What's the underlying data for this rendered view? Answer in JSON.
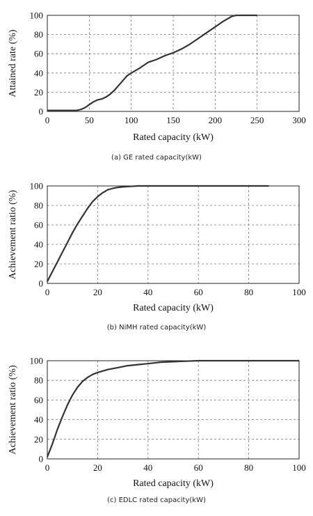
{
  "chart_data": [
    {
      "type": "line",
      "xlabel": "Rated capacity (kW)",
      "ylabel": "Attained rate (%)",
      "caption": "(a) GE rated capacity(kW)",
      "xlim": [
        0,
        300
      ],
      "ylim": [
        0,
        100
      ],
      "xticks": [
        "0",
        "50",
        "100",
        "150",
        "200",
        "250",
        "300"
      ],
      "yticks": [
        "0",
        "20",
        "40",
        "60",
        "80",
        "100"
      ],
      "grid": true,
      "series": [
        {
          "x": [
            0,
            35,
            40,
            45,
            50,
            55,
            60,
            65,
            70,
            75,
            80,
            85,
            90,
            95,
            100,
            110,
            120,
            130,
            140,
            150,
            160,
            170,
            180,
            190,
            200,
            210,
            220,
            225,
            230,
            250
          ],
          "y": [
            1,
            1,
            2,
            4,
            7,
            10,
            12,
            13,
            15,
            18,
            22,
            27,
            32,
            37,
            40,
            45,
            51,
            54,
            58,
            61,
            65,
            70,
            76,
            82,
            88,
            94,
            99,
            100,
            100,
            100
          ]
        }
      ]
    },
    {
      "type": "line",
      "xlabel": "Rated capacity (kW)",
      "ylabel": "Achievement ratio (%)",
      "caption": "(b) NiMH rated capacity(kW)",
      "xlim": [
        0,
        100
      ],
      "ylim": [
        0,
        100
      ],
      "xticks": [
        "0",
        "20",
        "40",
        "60",
        "80",
        "100"
      ],
      "yticks": [
        "0",
        "20",
        "40",
        "60",
        "80",
        "100"
      ],
      "grid": true,
      "series": [
        {
          "x": [
            0,
            2,
            4,
            6,
            8,
            10,
            12,
            14,
            16,
            18,
            20,
            22,
            24,
            26,
            28,
            30,
            33,
            36,
            40,
            50,
            60,
            70,
            80,
            88
          ],
          "y": [
            2,
            12,
            22,
            32,
            42,
            52,
            61,
            69,
            77,
            84,
            89,
            93,
            96,
            97.5,
            98.5,
            99,
            99.5,
            100,
            100,
            100,
            100,
            100,
            100,
            100
          ]
        }
      ]
    },
    {
      "type": "line",
      "xlabel": "Rated capacity (kW)",
      "ylabel": "Achievement ratio (%)",
      "caption": "(c) EDLC rated capacity(kW)",
      "xlim": [
        0,
        100
      ],
      "ylim": [
        0,
        100
      ],
      "xticks": [
        "0",
        "20",
        "40",
        "60",
        "80",
        "100"
      ],
      "yticks": [
        "0",
        "20",
        "40",
        "60",
        "80",
        "100"
      ],
      "grid": true,
      "series": [
        {
          "x": [
            0,
            2,
            4,
            6,
            8,
            10,
            12,
            14,
            16,
            18,
            20,
            24,
            28,
            32,
            36,
            40,
            45,
            50,
            55,
            60,
            70,
            80,
            90,
            100
          ],
          "y": [
            2,
            15,
            30,
            43,
            55,
            65,
            73,
            79,
            83,
            86,
            88,
            91,
            93,
            95,
            96,
            97,
            98.5,
            99,
            99.5,
            100,
            100,
            100,
            100,
            100
          ]
        }
      ]
    }
  ]
}
